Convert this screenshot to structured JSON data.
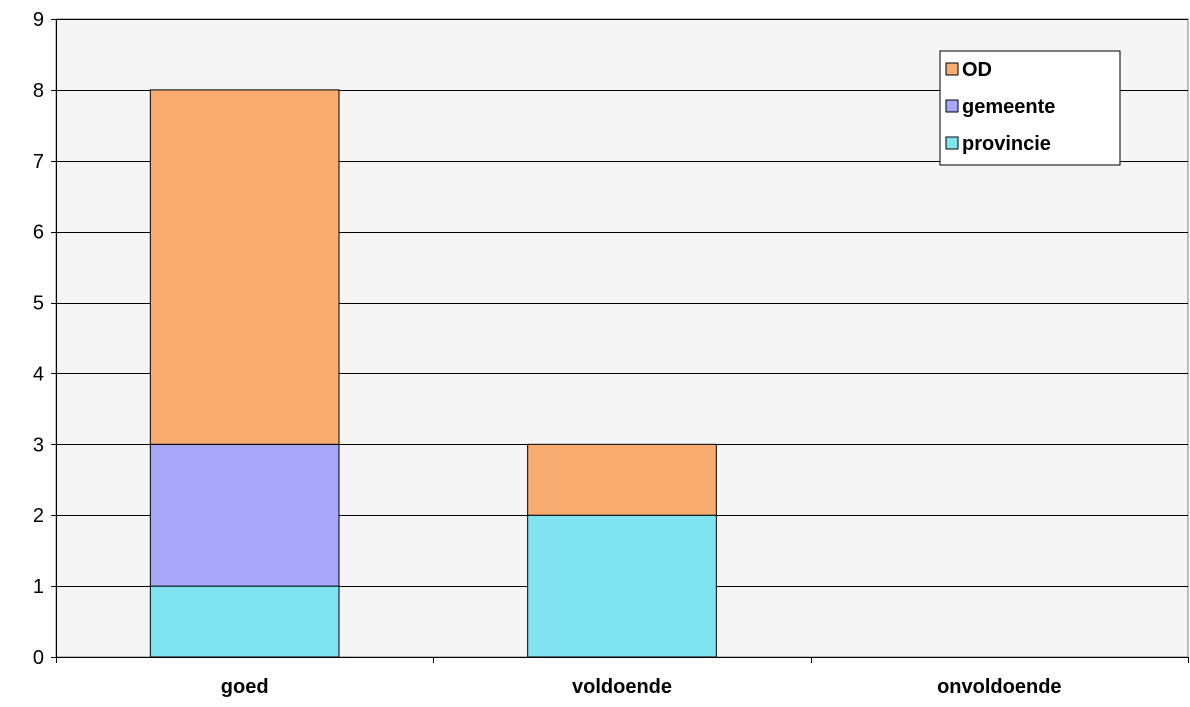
{
  "chart_data": {
    "type": "bar",
    "stacked": true,
    "categories": [
      "goed",
      "voldoende",
      "onvoldoende"
    ],
    "series": [
      {
        "name": "provincie",
        "values": [
          1,
          2,
          0
        ],
        "color": "#80E4F0"
      },
      {
        "name": "gemeente",
        "values": [
          2,
          0,
          0
        ],
        "color": "#A8A6F8"
      },
      {
        "name": "OD",
        "values": [
          5,
          1,
          0
        ],
        "color": "#F8AC70"
      }
    ],
    "legend_order": [
      "OD",
      "gemeente",
      "provincie"
    ],
    "title": "",
    "xlabel": "",
    "ylabel": "",
    "ylim": [
      0,
      9
    ],
    "yticks": [
      0,
      1,
      2,
      3,
      4,
      5,
      6,
      7,
      8,
      9
    ],
    "grid": true,
    "legend_position": "top-right",
    "plot_background": "#F5F5F5"
  }
}
